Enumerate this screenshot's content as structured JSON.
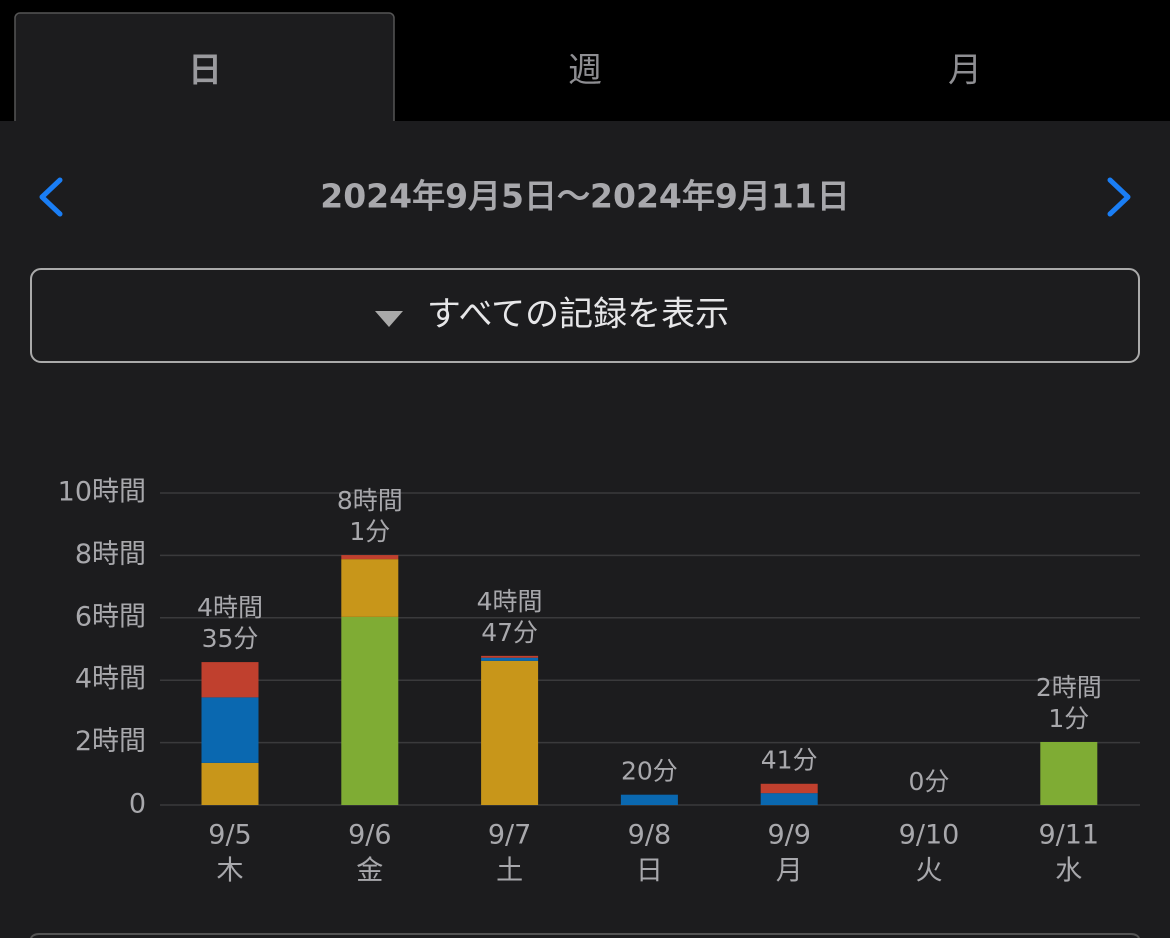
{
  "tabs": [
    "日",
    "週",
    "月"
  ],
  "date_range": "2024年9月5日〜2024年9月11日",
  "filter_button": "すべての記録を表示",
  "chart_data": {
    "type": "stacked_bar",
    "categories": [
      "9/5",
      "9/6",
      "9/7",
      "9/8",
      "9/9",
      "9/10",
      "9/11"
    ],
    "weekdays": [
      "木",
      "金",
      "土",
      "日",
      "月",
      "火",
      "水"
    ],
    "series": [
      {
        "color": "#7fac34",
        "values": [
          0,
          6.03,
          0,
          0,
          0,
          0,
          2.02
        ]
      },
      {
        "color": "#c8961a",
        "values": [
          1.35,
          1.85,
          4.62,
          0,
          0,
          0,
          0
        ]
      },
      {
        "color": "#0a68b0",
        "values": [
          2.1,
          0,
          0.1,
          0.33,
          0.38,
          0,
          0
        ]
      },
      {
        "color": "#c0402e",
        "values": [
          1.13,
          0.13,
          0.06,
          0,
          0.3,
          0,
          0
        ]
      }
    ],
    "totals": [
      4.583,
      8.017,
      4.783,
      0.333,
      0.683,
      0,
      2.017
    ],
    "value_labels": [
      [
        "4時間",
        "35分"
      ],
      [
        "8時間",
        "1分"
      ],
      [
        "4時間",
        "47分"
      ],
      [
        "20分"
      ],
      [
        "41分"
      ],
      [
        "0分"
      ],
      [
        "2時間",
        "1分"
      ]
    ],
    "ylim": [
      0,
      10
    ],
    "yticks": [
      0,
      {
        "value": 2,
        "label": "2時間"
      },
      {
        "value": 4,
        "label": "4時間"
      },
      {
        "value": 6,
        "label": "6時間"
      },
      {
        "value": 8,
        "label": "8時間"
      },
      {
        "value": 10,
        "label": "10時間"
      }
    ],
    "grid": true
  }
}
